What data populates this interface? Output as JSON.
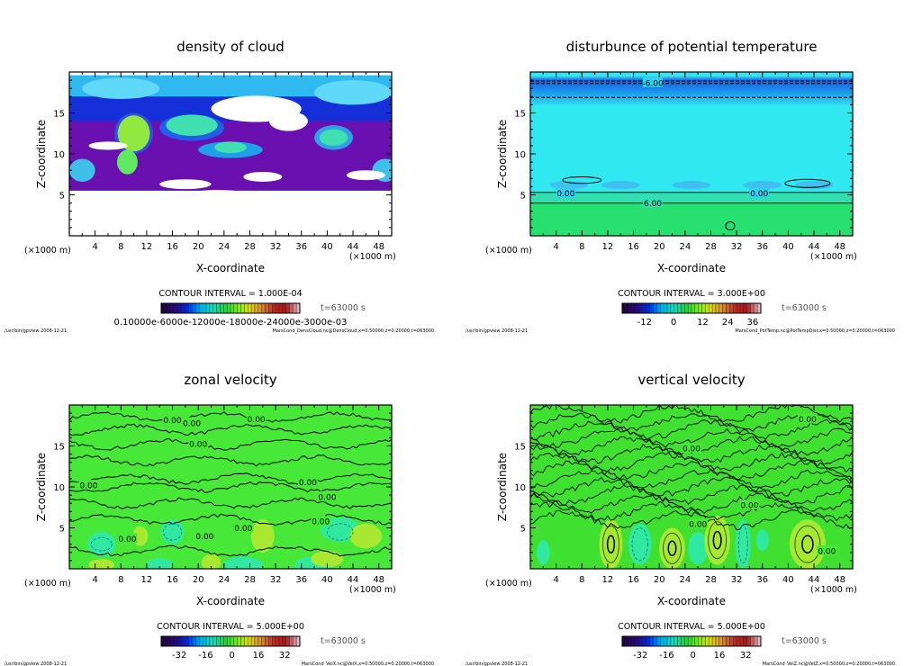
{
  "chart_data": [
    {
      "type": "heatmap",
      "field": "cloud",
      "title": "density of cloud",
      "xlabel": "X-coordinate",
      "ylabel": "Z-coordinate",
      "x_unit_left": "(×1000 m)",
      "x_unit_right": "(×1000 m)",
      "xlim": [
        0,
        50
      ],
      "ylim": [
        0,
        20
      ],
      "xticks": [
        4,
        8,
        12,
        16,
        20,
        24,
        28,
        32,
        36,
        40,
        44,
        48
      ],
      "yticks": [
        5,
        10,
        15
      ],
      "contour_interval": "CONTOUR INTERVAL = 1.000E-04",
      "time": "t=63000 s",
      "colorbar_ticks": [
        "0.10000e-6000e-12000e-18000e-24000e-3000e-03"
      ],
      "contour_labels": [],
      "footer_left": "/usr/bin/gpview   2008-12-21",
      "footer_right": "MarsCond_DensCloud.nc@DensCloud,x=0:50000,z=0:20000,t=063000"
    },
    {
      "type": "heatmap",
      "field": "theta",
      "title": "disturbunce of potential temperature",
      "xlabel": "X-coordinate",
      "ylabel": "Z-coordinate",
      "x_unit_left": "(×1000 m)",
      "x_unit_right": "(×1000 m)",
      "xlim": [
        0,
        50
      ],
      "ylim": [
        0,
        20
      ],
      "xticks": [
        4,
        8,
        12,
        16,
        20,
        24,
        28,
        32,
        36,
        40,
        44,
        48
      ],
      "yticks": [
        5,
        10,
        15
      ],
      "contour_interval": "CONTOUR INTERVAL = 3.000E+00",
      "time": "t=63000 s",
      "colorbar_ticks": [
        "-12",
        "0",
        "12",
        "24",
        "36"
      ],
      "contour_labels": [
        {
          "text": "-6.00",
          "x": 19,
          "z": 18.7
        },
        {
          "text": "0.00",
          "x": 5.5,
          "z": 5.2
        },
        {
          "text": "0.00",
          "x": 35.5,
          "z": 5.2
        },
        {
          "text": "6.00",
          "x": 19,
          "z": 4.0
        }
      ],
      "footer_left": "/usr/bin/gpview   2008-12-21",
      "footer_right": "MarsCond_PotTemp.nc@PotTempDist,x=0:50000,z=0:20000,t=063000"
    },
    {
      "type": "heatmap",
      "field": "u",
      "title": "zonal velocity",
      "xlabel": "X-coordinate",
      "ylabel": "Z-coordinate",
      "x_unit_left": "(×1000 m)",
      "x_unit_right": "(×1000 m)",
      "xlim": [
        0,
        50
      ],
      "ylim": [
        0,
        20
      ],
      "xticks": [
        4,
        8,
        12,
        16,
        20,
        24,
        28,
        32,
        36,
        40,
        44,
        48
      ],
      "yticks": [
        5,
        10,
        15
      ],
      "contour_interval": "CONTOUR INTERVAL = 5.000E+00",
      "time": "t=63000 s",
      "colorbar_ticks": [
        "-32",
        "-16",
        "0",
        "16",
        "32"
      ],
      "contour_labels": [
        {
          "text": "0.00",
          "x": 16,
          "z": 18.2
        },
        {
          "text": "0.00",
          "x": 19,
          "z": 17.8
        },
        {
          "text": "0.00",
          "x": 29,
          "z": 18.3
        },
        {
          "text": "0.00",
          "x": 20,
          "z": 15.3
        },
        {
          "text": "0.00",
          "x": 3,
          "z": 10.2
        },
        {
          "text": "0.00",
          "x": 37,
          "z": 10.6
        },
        {
          "text": "0.00",
          "x": 40,
          "z": 8.8
        },
        {
          "text": "0.00",
          "x": 39,
          "z": 5.8
        },
        {
          "text": "0.00",
          "x": 9,
          "z": 3.7
        },
        {
          "text": "0.00",
          "x": 21,
          "z": 4.0
        },
        {
          "text": "0.00",
          "x": 27,
          "z": 5.0
        }
      ],
      "footer_left": "/usr/bin/gpview   2008-12-21",
      "footer_right": "MarsCond_VelX.nc@VelX,x=0:50000,z=0:20000,t=063000"
    },
    {
      "type": "heatmap",
      "field": "w",
      "title": "vertical velocity",
      "xlabel": "X-coordinate",
      "ylabel": "Z-coordinate",
      "x_unit_left": "(×1000 m)",
      "x_unit_right": "(×1000 m)",
      "xlim": [
        0,
        50
      ],
      "ylim": [
        0,
        20
      ],
      "xticks": [
        4,
        8,
        12,
        16,
        20,
        24,
        28,
        32,
        36,
        40,
        44,
        48
      ],
      "yticks": [
        5,
        10,
        15
      ],
      "contour_interval": "CONTOUR INTERVAL = 5.000E+00",
      "time": "t=63000 s",
      "colorbar_ticks": [
        "-32",
        "-16",
        "0",
        "16",
        "32"
      ],
      "contour_labels": [
        {
          "text": "0.00",
          "x": 43,
          "z": 18.3
        },
        {
          "text": "0.00",
          "x": 25,
          "z": 14.7
        },
        {
          "text": "0.00",
          "x": 34,
          "z": 7.8
        },
        {
          "text": "0.00",
          "x": 26,
          "z": 5.5
        },
        {
          "text": "0.00",
          "x": 46,
          "z": 2.2
        }
      ],
      "footer_left": "/usr/bin/gpview   2008-12-21",
      "footer_right": "MarsCond_VelZ.nc@VelZ,x=0:50000,z=0:20000,t=063000"
    }
  ]
}
